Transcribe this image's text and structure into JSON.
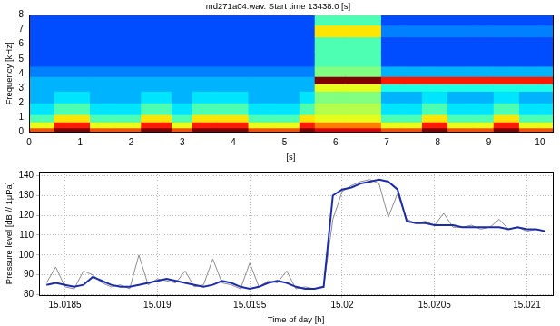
{
  "chart_data": [
    {
      "type": "heatmap",
      "title": "md271a04.wav. Start time 13438.0 [s]",
      "x_label": "[s]",
      "y_label": "Frequency [kHz]",
      "xlim": [
        0,
        10.25
      ],
      "ylim": [
        0,
        8
      ],
      "xticks": [
        0,
        1,
        2,
        3,
        4,
        5,
        6,
        7,
        8,
        9,
        10
      ],
      "yticks": [
        0,
        1,
        2,
        3,
        4,
        5,
        6,
        7,
        8
      ],
      "x_edges": [
        0,
        0.5,
        0.7,
        1.2,
        1.7,
        2.2,
        2.8,
        3.2,
        3.7,
        4.3,
        4.8,
        5.3,
        5.6,
        6.2,
        6.9,
        7.3,
        7.7,
        8.2,
        8.7,
        9.1,
        9.6,
        10.0,
        10.25
      ],
      "y_edges": [
        0,
        0.3,
        0.7,
        1.2,
        2,
        2.8,
        3.3,
        3.8,
        4.5,
        5.5,
        6.5,
        7.3,
        8
      ],
      "color_range": [
        0,
        10
      ],
      "cells": [
        [
          8,
          6,
          4.5,
          3.5,
          3,
          3,
          3,
          2.5,
          2,
          2,
          2,
          2
        ],
        [
          10,
          8.5,
          6.5,
          4.5,
          3.5,
          3,
          3,
          2.5,
          2,
          2,
          2,
          2
        ],
        [
          10,
          8.5,
          6.5,
          4.5,
          3.5,
          3,
          3,
          2.5,
          2,
          2,
          2,
          2
        ],
        [
          8,
          6,
          4.5,
          3.5,
          3,
          3,
          3,
          2.5,
          2,
          2,
          2,
          2
        ],
        [
          8,
          6,
          4.5,
          3.5,
          3,
          3,
          3,
          2.5,
          2,
          2,
          2,
          2
        ],
        [
          10,
          8.5,
          6.5,
          4.5,
          3.5,
          3,
          3,
          2.5,
          2,
          2,
          2,
          2
        ],
        [
          8,
          6,
          4.5,
          3.5,
          3,
          3,
          3,
          2.5,
          2,
          2,
          2,
          2
        ],
        [
          10,
          8.5,
          6.5,
          4.5,
          3.5,
          3,
          3,
          2.5,
          2,
          2,
          2,
          2
        ],
        [
          10,
          8.5,
          6.5,
          4.5,
          3.5,
          3,
          3,
          2.5,
          2,
          2,
          2,
          2
        ],
        [
          8,
          6,
          4.5,
          3.5,
          3,
          3,
          3,
          2.5,
          2,
          2,
          2,
          2
        ],
        [
          8,
          6,
          4.5,
          3.5,
          3,
          3,
          3,
          2.5,
          2,
          2,
          2,
          2
        ],
        [
          10,
          8.5,
          6.5,
          4.5,
          3.5,
          3,
          3,
          2.5,
          2,
          2,
          2,
          2
        ],
        [
          9,
          7.5,
          6,
          5.5,
          5,
          6,
          10,
          5,
          4.5,
          4.5,
          6.5,
          4.5
        ],
        [
          9,
          7.5,
          6,
          5.5,
          5,
          6,
          10,
          5,
          4.5,
          4.5,
          6.5,
          4.5
        ],
        [
          8,
          6,
          4.5,
          3.5,
          3,
          4,
          8.5,
          3,
          2,
          2,
          2.5,
          2
        ],
        [
          8,
          6,
          4.5,
          3.5,
          3,
          4,
          8.5,
          3,
          2,
          2,
          2.5,
          2
        ],
        [
          10,
          8.5,
          6.5,
          4.5,
          3.5,
          4,
          8.5,
          3,
          2,
          2,
          2.5,
          2
        ],
        [
          8,
          6,
          4.5,
          3.5,
          3,
          4,
          8.5,
          3,
          2,
          2,
          2.5,
          2
        ],
        [
          8,
          6,
          4.5,
          3.5,
          3,
          4,
          8.5,
          3,
          2,
          2,
          2.5,
          2
        ],
        [
          10,
          8.5,
          6.5,
          4.5,
          3.5,
          4,
          8.5,
          3,
          2,
          2,
          2.5,
          2
        ],
        [
          8,
          6,
          4.5,
          3.5,
          3,
          4,
          8.5,
          3,
          2,
          2,
          2.5,
          2
        ],
        [
          8,
          6,
          4.5,
          3.5,
          3,
          4,
          8.5,
          3,
          2,
          2,
          2.5,
          2
        ]
      ]
    },
    {
      "type": "line",
      "x_label": "Time of day [h]",
      "y_label": "Pressure level [dB // 1μPa]",
      "xlim": [
        15.01836,
        15.02114
      ],
      "ylim": [
        80,
        142
      ],
      "xticks": [
        15.0185,
        15.019,
        15.0195,
        15.02,
        15.0205,
        15.021
      ],
      "yticks": [
        80,
        90,
        100,
        110,
        120,
        130,
        140
      ],
      "grid": true,
      "x": [
        15.0184,
        15.01845,
        15.0185,
        15.01855,
        15.0186,
        15.01865,
        15.0187,
        15.01875,
        15.0188,
        15.01885,
        15.0189,
        15.01895,
        15.019,
        15.01905,
        15.0191,
        15.01915,
        15.0192,
        15.01925,
        15.0193,
        15.01935,
        15.0194,
        15.01945,
        15.0195,
        15.01955,
        15.0196,
        15.01965,
        15.0197,
        15.01975,
        15.0198,
        15.01985,
        15.0199,
        15.01995,
        15.02,
        15.02005,
        15.0201,
        15.02015,
        15.0202,
        15.02025,
        15.0203,
        15.02035,
        15.0204,
        15.02045,
        15.0205,
        15.02055,
        15.0206,
        15.02065,
        15.0207,
        15.02075,
        15.0208,
        15.02085,
        15.0209,
        15.02095,
        15.021,
        15.02105,
        15.0211
      ],
      "series": [
        {
          "color": "#1c2ca8",
          "values": [
            85,
            86,
            85,
            84,
            85,
            89,
            87,
            85,
            84,
            84,
            85,
            86,
            87,
            88,
            87,
            86,
            85,
            84,
            85,
            87,
            86,
            84,
            83,
            84,
            86,
            87,
            86,
            84,
            83,
            83,
            84,
            130,
            133,
            134,
            136,
            137,
            138,
            137,
            133,
            117,
            116,
            116,
            115,
            115,
            115,
            114,
            114,
            114,
            114,
            114,
            113,
            114,
            113,
            113,
            112
          ]
        },
        {
          "color": "#8c8c8c",
          "values": [
            86,
            94,
            84,
            83,
            92,
            90,
            86,
            84,
            85,
            83,
            100,
            85,
            88,
            87,
            86,
            92,
            84,
            85,
            98,
            86,
            85,
            83,
            96,
            84,
            87,
            86,
            92,
            83,
            84,
            83,
            84,
            118,
            132,
            135,
            137,
            138,
            136,
            119,
            131,
            118,
            116,
            117,
            115,
            121,
            114,
            114,
            115,
            113,
            114,
            118,
            113,
            114,
            112,
            113,
            112
          ]
        }
      ]
    }
  ]
}
